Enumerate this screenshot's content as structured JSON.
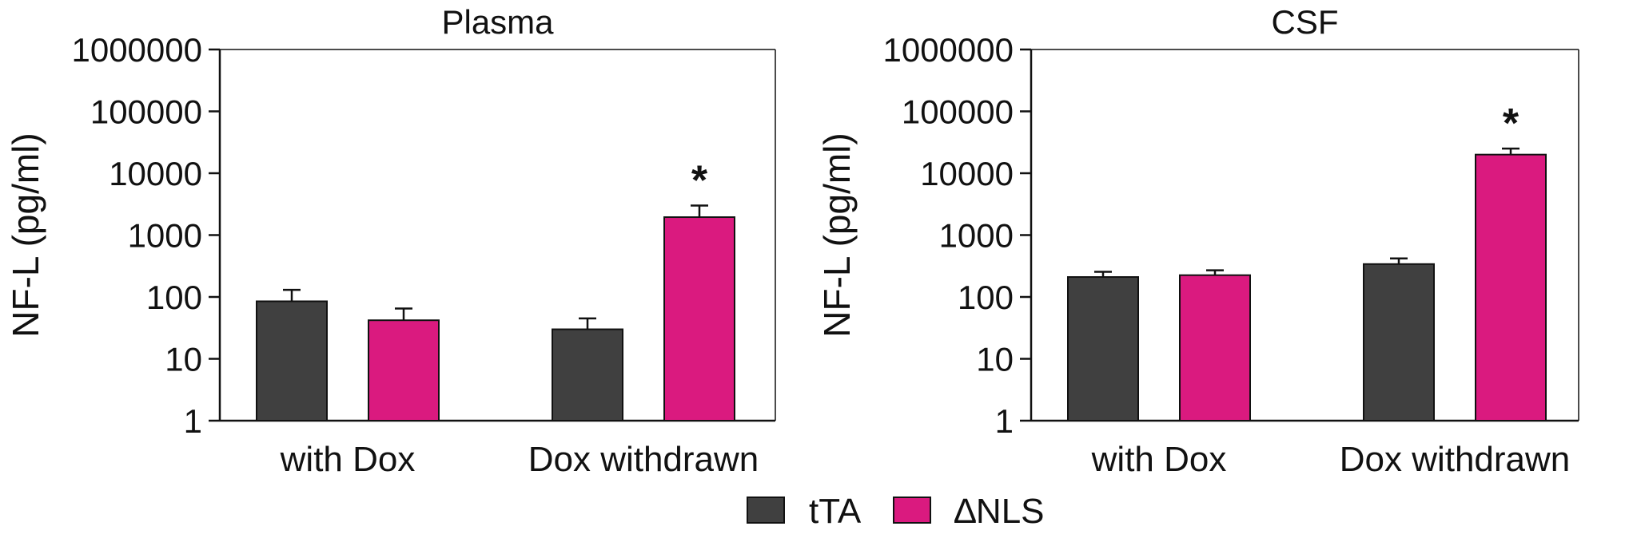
{
  "colors": {
    "tTA": "#404040",
    "dNLS": "#DA1A7F",
    "axis": "#111111"
  },
  "legend": [
    {
      "key": "tTA",
      "label": "tTA",
      "color": "#404040"
    },
    {
      "key": "dNLS",
      "label": "∆NLS",
      "color": "#DA1A7F"
    }
  ],
  "chart_data": [
    {
      "type": "bar",
      "title": "Plasma",
      "ylabel": "NF-L (pg/ml)",
      "yscale": "log",
      "ylim": [
        1,
        1000000
      ],
      "yticks": [
        "1",
        "10",
        "100",
        "1000",
        "10000",
        "100000",
        "1000000"
      ],
      "categories": [
        "with Dox",
        "Dox withdrawn"
      ],
      "series": [
        {
          "name": "tTA",
          "values": [
            85,
            30
          ],
          "error_upper": [
            130,
            45
          ]
        },
        {
          "name": "∆NLS",
          "values": [
            42,
            1950
          ],
          "error_upper": [
            65,
            3000
          ]
        }
      ],
      "annotations": [
        {
          "text": "*",
          "category": "Dox withdrawn",
          "series": "∆NLS"
        }
      ],
      "grid": false
    },
    {
      "type": "bar",
      "title": "CSF",
      "ylabel": "NF-L (pg/ml)",
      "yscale": "log",
      "ylim": [
        1,
        1000000
      ],
      "yticks": [
        "1",
        "10",
        "100",
        "1000",
        "10000",
        "100000",
        "1000000"
      ],
      "categories": [
        "with Dox",
        "Dox withdrawn"
      ],
      "series": [
        {
          "name": "tTA",
          "values": [
            210,
            340
          ],
          "error_upper": [
            255,
            420
          ]
        },
        {
          "name": "∆NLS",
          "values": [
            225,
            20000
          ],
          "error_upper": [
            270,
            25000
          ]
        }
      ],
      "annotations": [
        {
          "text": "*",
          "category": "Dox withdrawn",
          "series": "∆NLS"
        }
      ],
      "grid": false
    }
  ]
}
